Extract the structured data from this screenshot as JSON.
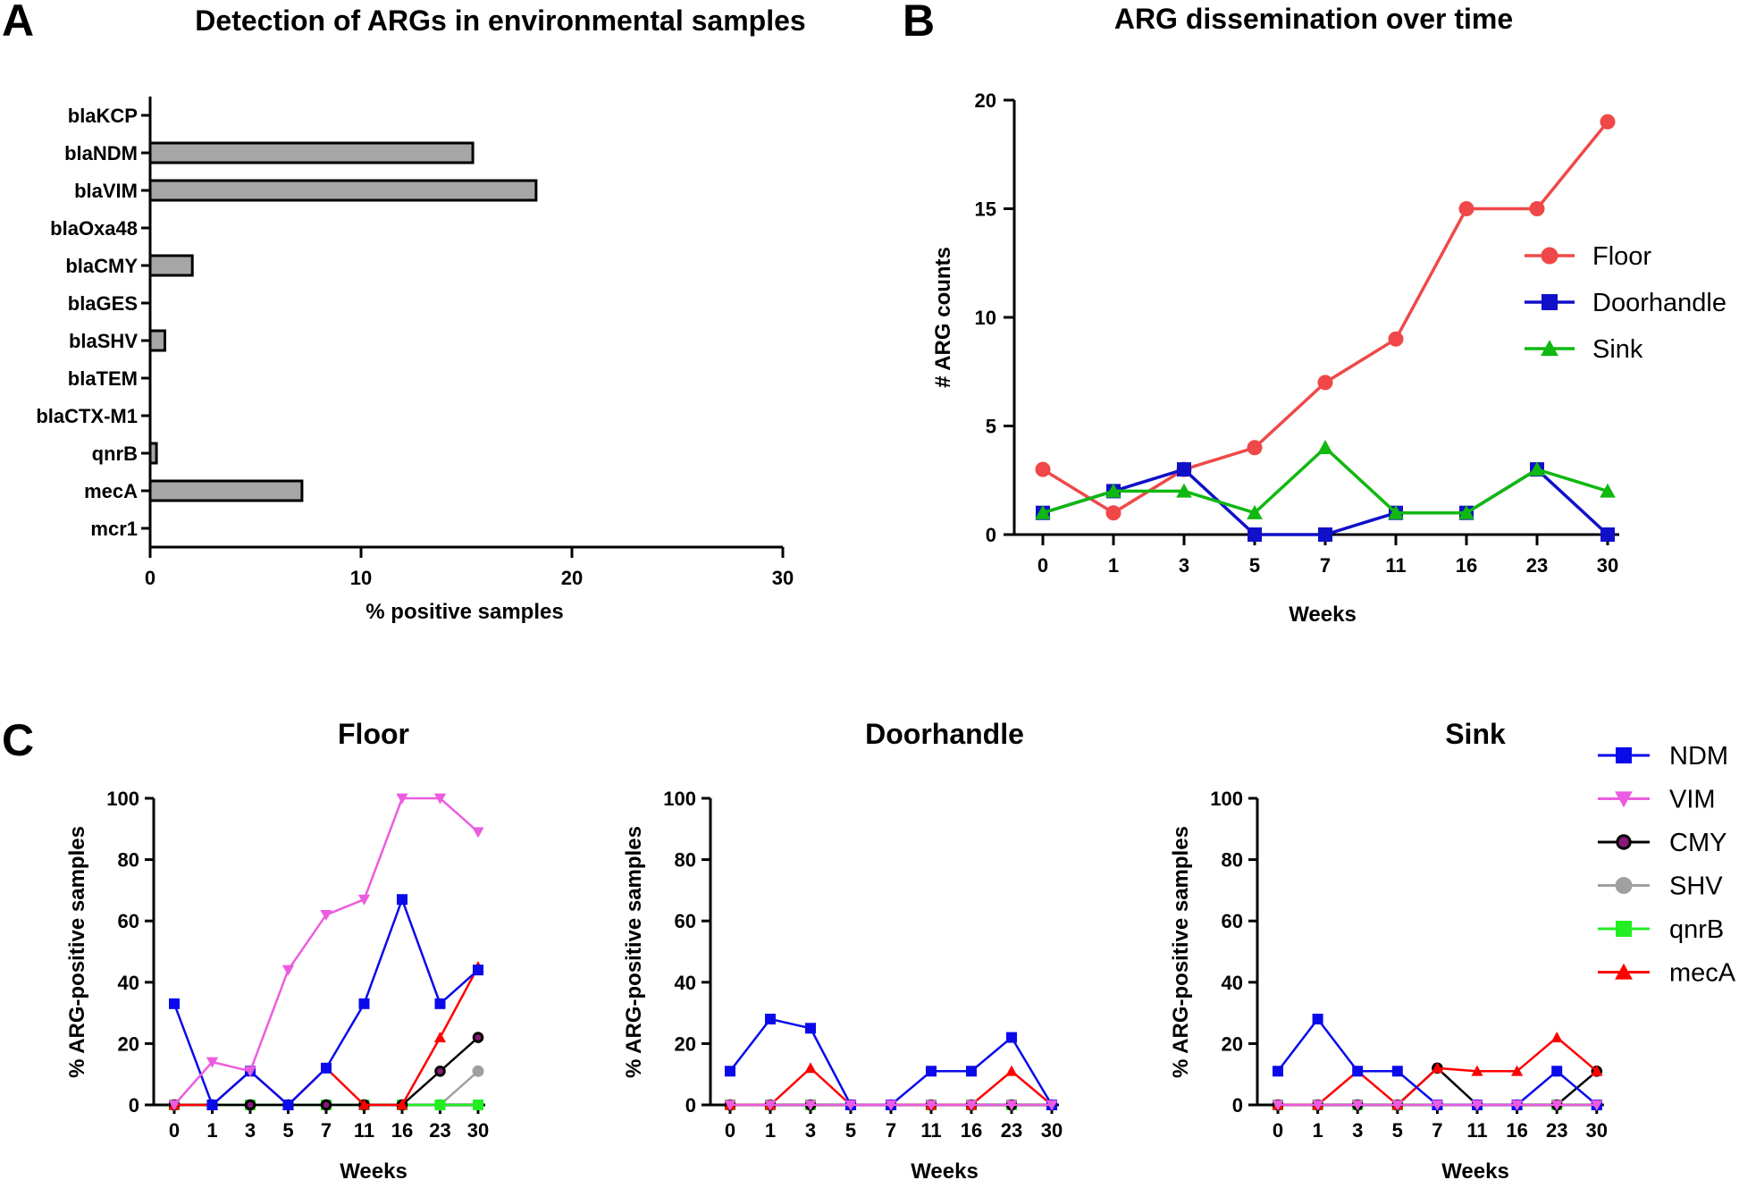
{
  "panel_labels": {
    "a": "A",
    "b": "B",
    "c": "C"
  },
  "chart_data": [
    {
      "panel": "A",
      "type": "bar",
      "orientation": "horizontal",
      "title": "Detection of ARGs in environmental samples",
      "xlabel": "% positive samples",
      "ylabel": "",
      "xlim": [
        0,
        30
      ],
      "xticks": [
        "0",
        "10",
        "20",
        "30"
      ],
      "categories": [
        "blaKCP",
        "blaNDM",
        "blaVIM",
        "blaOxa48",
        "blaCMY",
        "blaGES",
        "blaSHV",
        "blaTEM",
        "blaCTX-M1",
        "qnrB",
        "mecA",
        "mcr1"
      ],
      "values": [
        0,
        15.3,
        18.3,
        0,
        2.0,
        0,
        0.7,
        0,
        0,
        0.3,
        7.2,
        0
      ],
      "bar_color": "#a6a6a6"
    },
    {
      "panel": "B",
      "type": "line",
      "title": "ARG dissemination over time",
      "xlabel": "Weeks",
      "ylabel": "# ARG counts",
      "ylim": [
        0,
        20
      ],
      "yticks": [
        "0",
        "5",
        "10",
        "15",
        "20"
      ],
      "categories": [
        "0",
        "1",
        "3",
        "5",
        "7",
        "11",
        "16",
        "23",
        "30"
      ],
      "legend_position": "right",
      "series": [
        {
          "name": "Floor",
          "color": "#f04848",
          "marker": "circle",
          "values": [
            3,
            1,
            3,
            4,
            7,
            9,
            15,
            15,
            19
          ]
        },
        {
          "name": "Doorhandle",
          "color": "#1010c8",
          "marker": "square",
          "values": [
            1,
            2,
            3,
            0,
            0,
            1,
            1,
            3,
            0
          ]
        },
        {
          "name": "Sink",
          "color": "#10b810",
          "marker": "triangle",
          "values": [
            1,
            2,
            2,
            1,
            4,
            1,
            1,
            3,
            2
          ]
        }
      ]
    },
    {
      "panel": "C",
      "type": "line",
      "xlabel": "Weeks",
      "ylabel": "% ARG-positive samples",
      "ylim": [
        0,
        100
      ],
      "yticks": [
        "0",
        "20",
        "40",
        "60",
        "80",
        "100"
      ],
      "categories": [
        "0",
        "1",
        "3",
        "5",
        "7",
        "11",
        "16",
        "23",
        "30"
      ],
      "legend_position": "right",
      "legend": [
        {
          "name": "NDM",
          "color": "#0a0aeb",
          "marker": "square"
        },
        {
          "name": "VIM",
          "color": "#ec5ce0",
          "marker": "triangle-down"
        },
        {
          "name": "CMY",
          "color": "#000000",
          "marker": "circle-ring"
        },
        {
          "name": "SHV",
          "color": "#a0a0a0",
          "marker": "circle"
        },
        {
          "name": "qnrB",
          "color": "#22ee22",
          "marker": "square"
        },
        {
          "name": "mecA",
          "color": "#ff0000",
          "marker": "triangle"
        }
      ],
      "subplots": [
        {
          "title": "Floor",
          "series": [
            {
              "name": "SHV",
              "values": [
                0,
                0,
                0,
                0,
                0,
                0,
                0,
                0,
                11
              ]
            },
            {
              "name": "qnrB",
              "values": [
                0,
                0,
                0,
                0,
                0,
                0,
                0,
                0,
                0
              ]
            },
            {
              "name": "CMY",
              "values": [
                0,
                0,
                0,
                0,
                0,
                0,
                0,
                11,
                22
              ]
            },
            {
              "name": "mecA",
              "values": [
                0,
                0,
                11,
                0,
                12,
                0,
                0,
                22,
                45
              ]
            },
            {
              "name": "NDM",
              "values": [
                33,
                0,
                11,
                0,
                12,
                33,
                67,
                33,
                44
              ]
            },
            {
              "name": "VIM",
              "values": [
                0,
                14,
                11,
                44,
                62,
                67,
                100,
                100,
                89
              ]
            }
          ]
        },
        {
          "title": "Doorhandle",
          "series": [
            {
              "name": "qnrB",
              "values": [
                0,
                0,
                0,
                0,
                0,
                0,
                0,
                0,
                0
              ]
            },
            {
              "name": "CMY",
              "values": [
                0,
                0,
                0,
                0,
                0,
                0,
                0,
                0,
                0
              ]
            },
            {
              "name": "mecA",
              "values": [
                0,
                0,
                12,
                0,
                0,
                0,
                0,
                11,
                0
              ]
            },
            {
              "name": "NDM",
              "values": [
                11,
                28,
                25,
                0,
                0,
                11,
                11,
                22,
                0
              ]
            },
            {
              "name": "VIM",
              "values": [
                0,
                0,
                0,
                0,
                0,
                0,
                0,
                0,
                0
              ]
            }
          ]
        },
        {
          "title": "Sink",
          "series": [
            {
              "name": "qnrB",
              "values": [
                0,
                0,
                0,
                0,
                0,
                0,
                0,
                0,
                0
              ]
            },
            {
              "name": "CMY",
              "values": [
                0,
                0,
                0,
                0,
                12,
                0,
                0,
                0,
                11
              ]
            },
            {
              "name": "mecA",
              "values": [
                0,
                0,
                11,
                0,
                12,
                11,
                11,
                22,
                11
              ]
            },
            {
              "name": "NDM",
              "values": [
                11,
                28,
                11,
                11,
                0,
                0,
                0,
                11,
                0
              ]
            },
            {
              "name": "VIM",
              "values": [
                0,
                0,
                0,
                0,
                0,
                0,
                0,
                0,
                0
              ]
            }
          ]
        }
      ]
    }
  ]
}
